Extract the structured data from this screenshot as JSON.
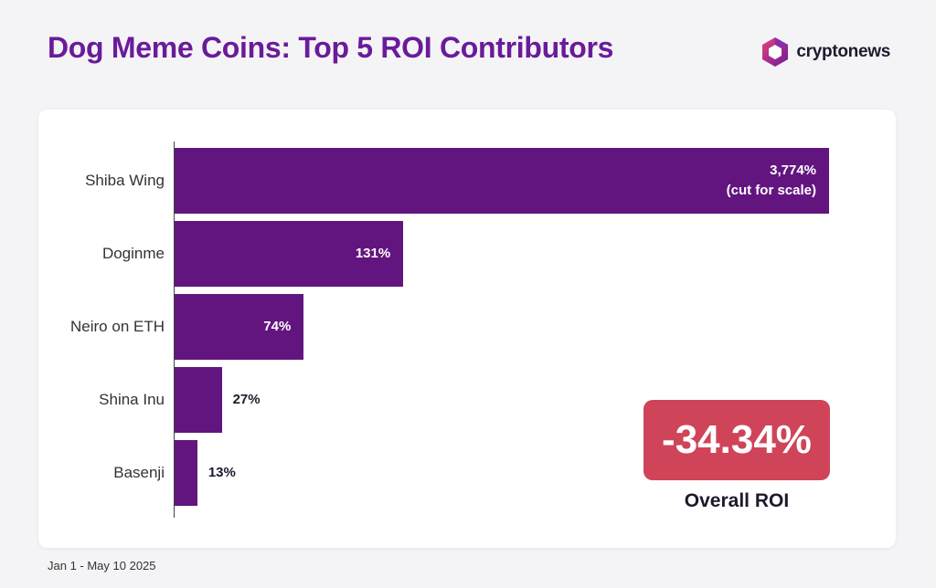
{
  "title": "Dog Meme Coins: Top 5 ROI Contributors",
  "brand": {
    "name": "cryptonews",
    "icon": "cryptonews-logo-icon"
  },
  "colors": {
    "bar": "#63157f",
    "title": "#6a1b9a",
    "roi_box": "#cf4458"
  },
  "chart_data": {
    "type": "bar",
    "orientation": "horizontal",
    "categories": [
      "Shiba Wing",
      "Doginme",
      "Neiro on ETH",
      "Shina Inu",
      "Basenji"
    ],
    "values": [
      3774,
      131,
      74,
      27,
      13
    ],
    "value_labels": [
      "3,774%",
      "131%",
      "74%",
      "27%",
      "13%"
    ],
    "value_notes": [
      "(cut for scale)",
      "",
      "",
      "",
      ""
    ],
    "unit": "%",
    "truncated": [
      true,
      false,
      false,
      false,
      false
    ],
    "xlabel": "",
    "ylabel": "",
    "grid": false
  },
  "summary": {
    "value": "-34.34%",
    "label": "Overall ROI"
  },
  "footnote": "Jan 1 - May 10 2025"
}
